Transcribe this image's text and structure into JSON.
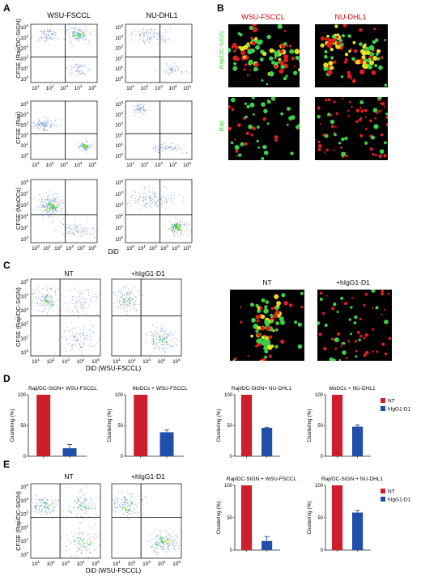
{
  "panels": {
    "A": {
      "letter": "A",
      "col_titles": [
        "WSU-FSCCL",
        "NU-DHL1"
      ],
      "row_ylabels": [
        "CFSE (Raji/DC-SIGN)",
        "CFSE (Raji)",
        "CFSE (MoDCs)"
      ],
      "xlabel": "DiD"
    },
    "B": {
      "letter": "B",
      "col_titles": [
        "WSU-FSCCL",
        "NU-DHL1"
      ],
      "title_color": "#d40000",
      "row_labels": [
        "Raji/DC-SIGN",
        "Raji"
      ],
      "row_label_color": "#2fd62f"
    },
    "C": {
      "letter": "C",
      "col_titles": [
        "NT",
        "+hIgG1-D1"
      ],
      "ylabel": "CFSE (Raji/DC-SIGN)",
      "xlabel": "DiD (WSU-FSCCL)",
      "micro_titles": [
        "NT",
        "+hIgG1-D1"
      ]
    },
    "D": {
      "letter": "D"
    },
    "E": {
      "letter": "E",
      "col_titles": [
        "NT",
        "+hIgG1-D1"
      ],
      "ylabel": "CFSE (Raji/DC-SIGN)",
      "xlabel": "DiD (WSU-FSCCL)"
    }
  },
  "axis_ticks": {
    "x": [
      {
        "base": "10",
        "exp": "1"
      },
      {
        "base": "10",
        "exp": "2"
      },
      {
        "base": "10",
        "exp": "3"
      },
      {
        "base": "10",
        "exp": "4"
      },
      {
        "base": "10",
        "exp": "5"
      }
    ],
    "x_with_zero": [
      {
        "base": "10",
        "exp": "0"
      },
      {
        "base": "10",
        "exp": "1"
      },
      {
        "base": "10",
        "exp": "2"
      },
      {
        "base": "10",
        "exp": "3"
      },
      {
        "base": "10",
        "exp": "4"
      },
      {
        "base": "10",
        "exp": "5"
      }
    ],
    "y": [
      {
        "base": "10",
        "exp": "5"
      },
      {
        "base": "10",
        "exp": "4"
      },
      {
        "base": "10",
        "exp": "3"
      },
      {
        "base": "10",
        "exp": "2"
      },
      {
        "base": "10",
        "exp": "1"
      },
      {
        "base": "10",
        "exp": "0"
      }
    ]
  },
  "colors": {
    "nt": "#cc1f2b",
    "igg": "#1f4fa8",
    "dot_blue": "#4a6fd0",
    "dot_green": "#3fd04a",
    "dot_yellow": "#e6e020",
    "dot_red": "#e01e1e"
  },
  "chart_data": [
    {
      "type": "bar",
      "panel": "D",
      "title": "Raji/DC-SIGN+ WSU-FSCCL",
      "ylabel": "Clustering (%)",
      "ylim": [
        0,
        100
      ],
      "yticks": [
        "0",
        "50",
        "100"
      ],
      "categories": [
        "NT",
        "hIgG1-D1"
      ],
      "values": [
        100,
        13
      ],
      "errors": [
        0,
        6
      ]
    },
    {
      "type": "bar",
      "panel": "D",
      "title": "MoDCs + WSU-FSCCL",
      "ylabel": "Clustering (%)",
      "ylim": [
        0,
        100
      ],
      "yticks": [
        "0",
        "50",
        "100"
      ],
      "categories": [
        "NT",
        "hIgG1-D1"
      ],
      "values": [
        100,
        39
      ],
      "errors": [
        0,
        4
      ]
    },
    {
      "type": "bar",
      "panel": "D",
      "title": "Raji/DC-SIGN+ NU-DHL1",
      "ylabel": "Clustering (%)",
      "ylim": [
        0,
        100
      ],
      "yticks": [
        "0",
        "50",
        "100"
      ],
      "categories": [
        "NT",
        "hIgG1-D1"
      ],
      "values": [
        100,
        46
      ],
      "errors": [
        0,
        1
      ]
    },
    {
      "type": "bar",
      "panel": "D",
      "title": "MoDCs + NU-DHL1",
      "ylabel": "Clustering (%)",
      "ylim": [
        0,
        100
      ],
      "yticks": [
        "0",
        "50",
        "100"
      ],
      "categories": [
        "NT",
        "hIgG1-D1"
      ],
      "values": [
        100,
        48
      ],
      "errors": [
        0,
        3
      ],
      "legend": [
        "NT",
        "hIgG1-D1"
      ]
    },
    {
      "type": "bar",
      "panel": "E",
      "title": "Raji/DC-SIGN + WSU-FSCCL",
      "ylabel": "Clustering (%)",
      "ylim": [
        0,
        100
      ],
      "yticks": [
        "0",
        "50",
        "100"
      ],
      "categories": [
        "NT",
        "hIgG1-D1"
      ],
      "values": [
        100,
        14
      ],
      "errors": [
        0,
        7
      ]
    },
    {
      "type": "bar",
      "panel": "E",
      "title": "Raji/DC-SIGN + NU-DHL1",
      "ylabel": "Clustering (%)",
      "ylim": [
        0,
        100
      ],
      "yticks": [
        "0",
        "50",
        "100"
      ],
      "categories": [
        "NT",
        "hIgG1-D1"
      ],
      "values": [
        100,
        58
      ],
      "errors": [
        0,
        3
      ],
      "legend": [
        "NT",
        "hIgG1-D1"
      ]
    }
  ]
}
